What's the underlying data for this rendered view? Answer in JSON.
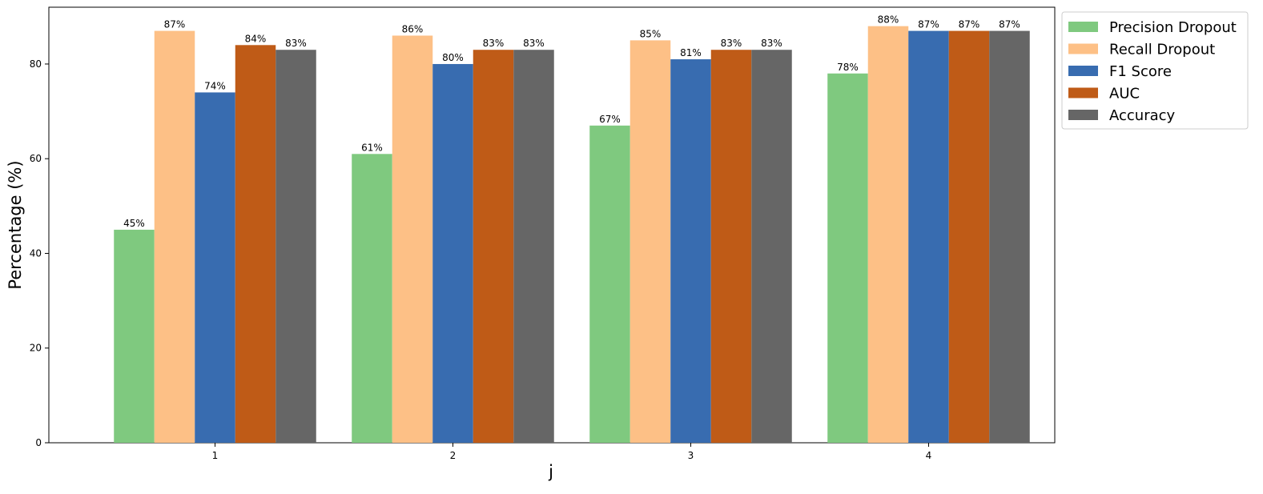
{
  "chart_data": {
    "type": "bar",
    "title": "",
    "xlabel": "j",
    "ylabel": "Percentage (%)",
    "categories": [
      "1",
      "2",
      "3",
      "4"
    ],
    "ylim": [
      0,
      92
    ],
    "yticks": [
      0,
      20,
      40,
      60,
      80
    ],
    "grid": false,
    "legend_position": "outside-top-right",
    "value_suffix": "%",
    "series": [
      {
        "name": "Precision Dropout",
        "color": "#7fc97f",
        "values": [
          45,
          61,
          67,
          78
        ]
      },
      {
        "name": "Recall Dropout",
        "color": "#fdc086",
        "values": [
          87,
          86,
          85,
          88
        ]
      },
      {
        "name": "F1 Score",
        "color": "#386cb0",
        "values": [
          74,
          80,
          81,
          87
        ]
      },
      {
        "name": "AUC",
        "color": "#bf5b17",
        "values": [
          84,
          83,
          83,
          87
        ]
      },
      {
        "name": "Accuracy",
        "color": "#666666",
        "values": [
          83,
          83,
          83,
          87
        ]
      }
    ]
  }
}
